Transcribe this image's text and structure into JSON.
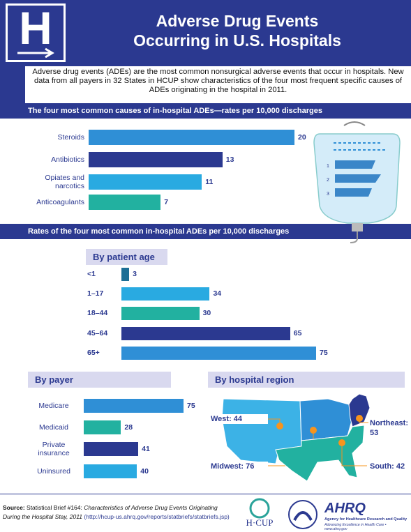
{
  "header": {
    "logo": "H",
    "title_line1": "Adverse Drug Events",
    "title_line2": "Occurring in U.S. Hospitals"
  },
  "intro": "Adverse drug events (ADEs) are the most common nonsurgical adverse events that occur in hospitals. New data from all payers in 32 States in HCUP show characteristics of the four most frequent specific causes of ADEs originating in the hospital in 2011.",
  "section_title": "Rates of the four most common in-hospital ADEs per 10,000 discharges",
  "chart_data": [
    {
      "type": "bar",
      "title": "The four most common causes of in-hospital ADEs—rates per 10,000 discharges",
      "categories": [
        "Steroids",
        "Antibiotics",
        "Opiates and narcotics",
        "Anticoagulants"
      ],
      "values": [
        20,
        13,
        11,
        7
      ],
      "colors": [
        "#2f8fd6",
        "#2b3990",
        "#29aae1",
        "#22b1a0"
      ]
    },
    {
      "type": "bar",
      "title": "By patient age",
      "categories": [
        "<1",
        "1–17",
        "18–44",
        "45–64",
        "65+"
      ],
      "values": [
        3,
        34,
        30,
        65,
        75
      ],
      "colors": [
        "#1d6f96",
        "#29aae1",
        "#22b1a0",
        "#2b3990",
        "#2f8fd6"
      ]
    },
    {
      "type": "bar",
      "title": "By payer",
      "categories": [
        "Medicare",
        "Medicaid",
        "Private insurance",
        "Uninsured"
      ],
      "values": [
        75,
        28,
        41,
        40
      ],
      "colors": [
        "#2f8fd6",
        "#22b1a0",
        "#2b3990",
        "#29aae1"
      ]
    },
    {
      "type": "map",
      "title": "By hospital region",
      "values": [
        44,
        76,
        53,
        42
      ],
      "value_labels": [
        "West: 44",
        "Midwest: 76",
        "Northeast: 53",
        "South: 42"
      ],
      "colors": [
        "#3cb2e6",
        "#2f8fd6",
        "#2b3990",
        "#22b1a0"
      ]
    }
  ],
  "footer": {
    "source_label": "Source:",
    "source_brief": "Statistical Brief #164:",
    "source_title": "Characteristics of Adverse Drug Events Originating During the Hospital Stay, 2011",
    "source_url": "(http://hcup-us.ahrq.gov/reports/statbriefs/statbriefs.jsp)",
    "hcup": "H·CUP",
    "ahrq": "AHRQ",
    "ahrq_name": "Agency for Healthcare Research and Quality",
    "ahrq_tagline": "Advancing Excellence in Health Care • www.ahrq.gov"
  }
}
